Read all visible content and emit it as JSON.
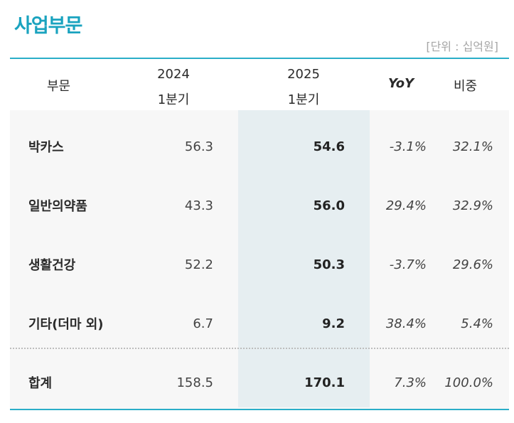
{
  "title": "사업부문",
  "unit": "[단위 : 십억원]",
  "header": {
    "segment": "부문",
    "y2024": "2024",
    "q2024": "1분기",
    "y2025": "2025",
    "q2025": "1분기",
    "yoy": "YoY",
    "share": "비중"
  },
  "rows": [
    {
      "name": "박카스",
      "v2024": "56.3",
      "v2025": "54.6",
      "yoy": "-3.1%",
      "share": "32.1%"
    },
    {
      "name": "일반의약품",
      "v2024": "43.3",
      "v2025": "56.0",
      "yoy": "29.4%",
      "share": "32.9%"
    },
    {
      "name": "생활건강",
      "v2024": "52.2",
      "v2025": "50.3",
      "yoy": "-3.7%",
      "share": "29.6%"
    },
    {
      "name": "기타(더마 외)",
      "v2024": "6.7",
      "v2025": "9.2",
      "yoy": "38.4%",
      "share": "5.4%"
    }
  ],
  "total": {
    "name": "합계",
    "v2024": "158.5",
    "v2025": "170.1",
    "yoy": "7.3%",
    "share": "100.0%"
  }
}
